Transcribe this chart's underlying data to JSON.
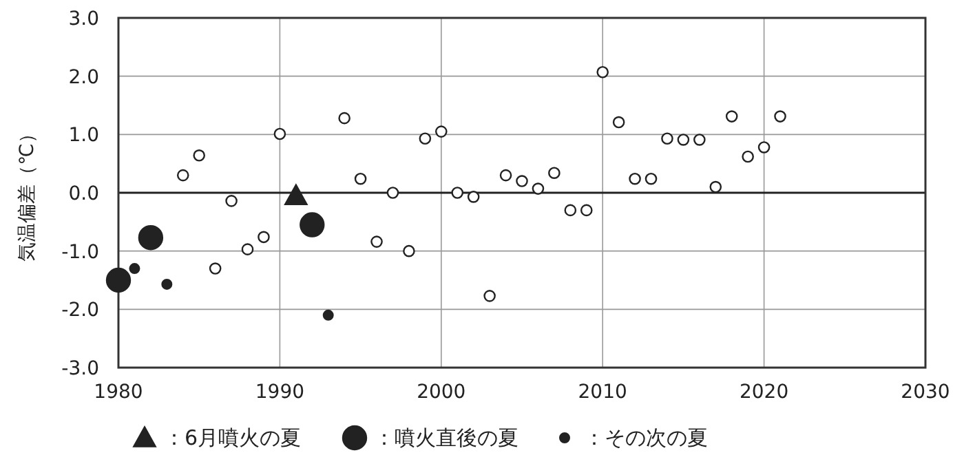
{
  "chart_data": {
    "type": "scatter",
    "ylabel": "気温偏差（℃）",
    "xlim": [
      1980,
      2030
    ],
    "xticks": [
      1980,
      1990,
      2000,
      2010,
      2020,
      2030
    ],
    "ylim": [
      -3,
      3
    ],
    "yticks": [
      {
        "value": -3,
        "label": "-3.0"
      },
      {
        "value": -2,
        "label": "-2.0"
      },
      {
        "value": -1,
        "label": "-1.0"
      },
      {
        "value": 0,
        "label": "0.0"
      },
      {
        "value": 1,
        "label": "1.0"
      },
      {
        "value": 2,
        "label": "2.0"
      },
      {
        "value": 3,
        "label": "3.0"
      }
    ],
    "grid": true,
    "legend": "bottom",
    "ref_lines": [
      {
        "axis": "y",
        "value": 0,
        "color": "#222222"
      }
    ],
    "series": [
      {
        "color": "#ffffff",
        "marker": "circle",
        "x": [
          1984,
          1985,
          1986,
          1987,
          1988,
          1989,
          1990,
          1994,
          1995,
          1996,
          1997,
          1998,
          1999,
          2000,
          2001,
          2002,
          2003,
          2004,
          2005,
          2006,
          2007,
          2008,
          2009,
          2010,
          2011,
          2012,
          2013,
          2014,
          2015,
          2016,
          2017,
          2018,
          2019,
          2020,
          2021
        ],
        "values": [
          0.3,
          0.64,
          -1.3,
          -0.14,
          -0.97,
          -0.76,
          1.01,
          1.28,
          0.24,
          -0.84,
          0.0,
          -1.0,
          0.93,
          1.05,
          0.0,
          -0.07,
          -1.77,
          0.3,
          0.2,
          0.07,
          0.34,
          -0.3,
          -0.3,
          2.07,
          1.21,
          0.24,
          0.24,
          0.93,
          0.91,
          0.91,
          0.1,
          1.31,
          0.62,
          0.78,
          1.31
        ],
        "sizes": [
          0.2,
          0.2,
          0.2,
          0.2,
          0.2,
          0.2,
          0.2,
          0.2,
          0.2,
          0.2,
          0.2,
          0.2,
          0.2,
          0.2,
          0.2,
          0.2,
          0.2,
          0.2,
          0.2,
          0.2,
          0.2,
          0.2,
          0.2,
          0.2,
          0.2,
          0.2,
          0.2,
          0.2,
          0.2,
          0.2,
          0.2,
          0.2,
          0.2,
          0.2,
          0.2
        ]
      },
      {
        "name": "：6月噴火の夏",
        "color": "#222222",
        "marker": "triangle",
        "x": [
          1991
        ],
        "values": [
          -0.05
        ],
        "sizes": [
          0.5
        ]
      },
      {
        "name": "：噴火直後の夏",
        "color": "#222222",
        "marker": "circle",
        "x": [
          1980,
          1982,
          1992
        ],
        "values": [
          -1.5,
          -0.77,
          -0.55
        ],
        "sizes": [
          1,
          1,
          1
        ]
      },
      {
        "name": "：その次の夏",
        "color": "#222222",
        "marker": "circle",
        "x": [
          1981,
          1983,
          1993
        ],
        "values": [
          -1.3,
          -1.57,
          -2.1
        ],
        "sizes": [
          0.16,
          0.16,
          0.16
        ]
      }
    ]
  }
}
